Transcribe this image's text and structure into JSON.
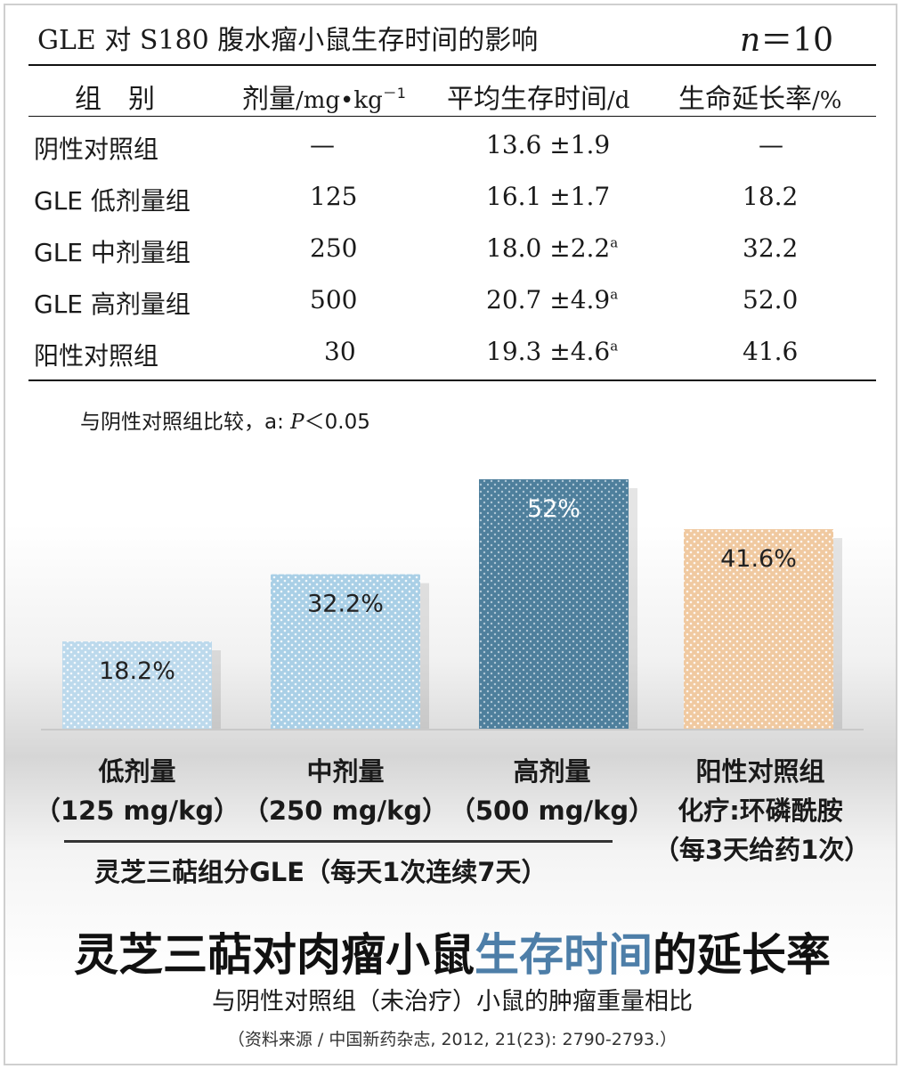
{
  "table": {
    "title": "GLE 对 S180 腹水瘤小鼠生存时间的影响",
    "n_label": "n",
    "n_value": "＝10",
    "headers": {
      "group": "组　别",
      "dose": "剂量",
      "dose_unit": "/mg•kg",
      "dose_exp": "－1",
      "survival": "平均生存时间",
      "survival_unit": "/d",
      "rate": "生命延长率",
      "rate_unit": "/%"
    },
    "rows": [
      {
        "group": "阴性对照组",
        "dose": "—",
        "survival": "13.6 ±1.9",
        "mark": "",
        "rate": "—"
      },
      {
        "group": "GLE 低剂量组",
        "dose": "125",
        "survival": "16.1 ±1.7",
        "mark": "",
        "rate": "18.2"
      },
      {
        "group": "GLE 中剂量组",
        "dose": "250",
        "survival": "18.0 ±2.2",
        "mark": "a",
        "rate": "32.2"
      },
      {
        "group": "GLE 高剂量组",
        "dose": "500",
        "survival": "20.7 ±4.9",
        "mark": "a",
        "rate": "52.0"
      },
      {
        "group": "阳性对照组",
        "dose": "30",
        "survival": "19.3 ±4.6",
        "mark": "a",
        "rate": "41.6"
      }
    ],
    "footnote": "与阴性对照组比较，a:",
    "footnote_p": "P",
    "footnote_val": "＜0.05"
  },
  "chart_data": {
    "type": "bar",
    "categories": [
      "低剂量（125 mg/kg）",
      "中剂量（250 mg/kg）",
      "高剂量（500 mg/kg）",
      "阳性对照组 化疗:环磷酰胺（每3天给药1次）"
    ],
    "values": [
      18.2,
      32.2,
      52,
      41.6
    ],
    "data_labels": [
      "18.2%",
      "32.2%",
      "52%",
      "41.6%"
    ],
    "ylim": [
      0,
      52
    ],
    "colors": [
      "#bcd9ec",
      "#a9cfe6",
      "#4e7f9c",
      "#f0c9a0"
    ],
    "title": "灵芝三萜对肉瘤小鼠生存时间的延长率"
  },
  "chart_text": {
    "cat_lines": [
      [
        "低剂量",
        "（125 mg/kg）"
      ],
      [
        "中剂量",
        "（250 mg/kg）"
      ],
      [
        "高剂量",
        "（500 mg/kg）"
      ],
      [
        "阳性对照组",
        "化疗:环磷酰胺",
        "（每3天给药1次）"
      ]
    ],
    "group_note": "灵芝三萜组分GLE（每天1次连续7天）",
    "title_pre": "灵芝三萜对肉瘤小鼠",
    "title_hl": "生存时间",
    "title_post": "的延长率",
    "subtitle": "与阴性对照组（未治疗）小鼠的肿瘤重量相比",
    "source": "（资料来源 / 中国新药杂志, 2012, 21(23): 2790-2793.）"
  }
}
